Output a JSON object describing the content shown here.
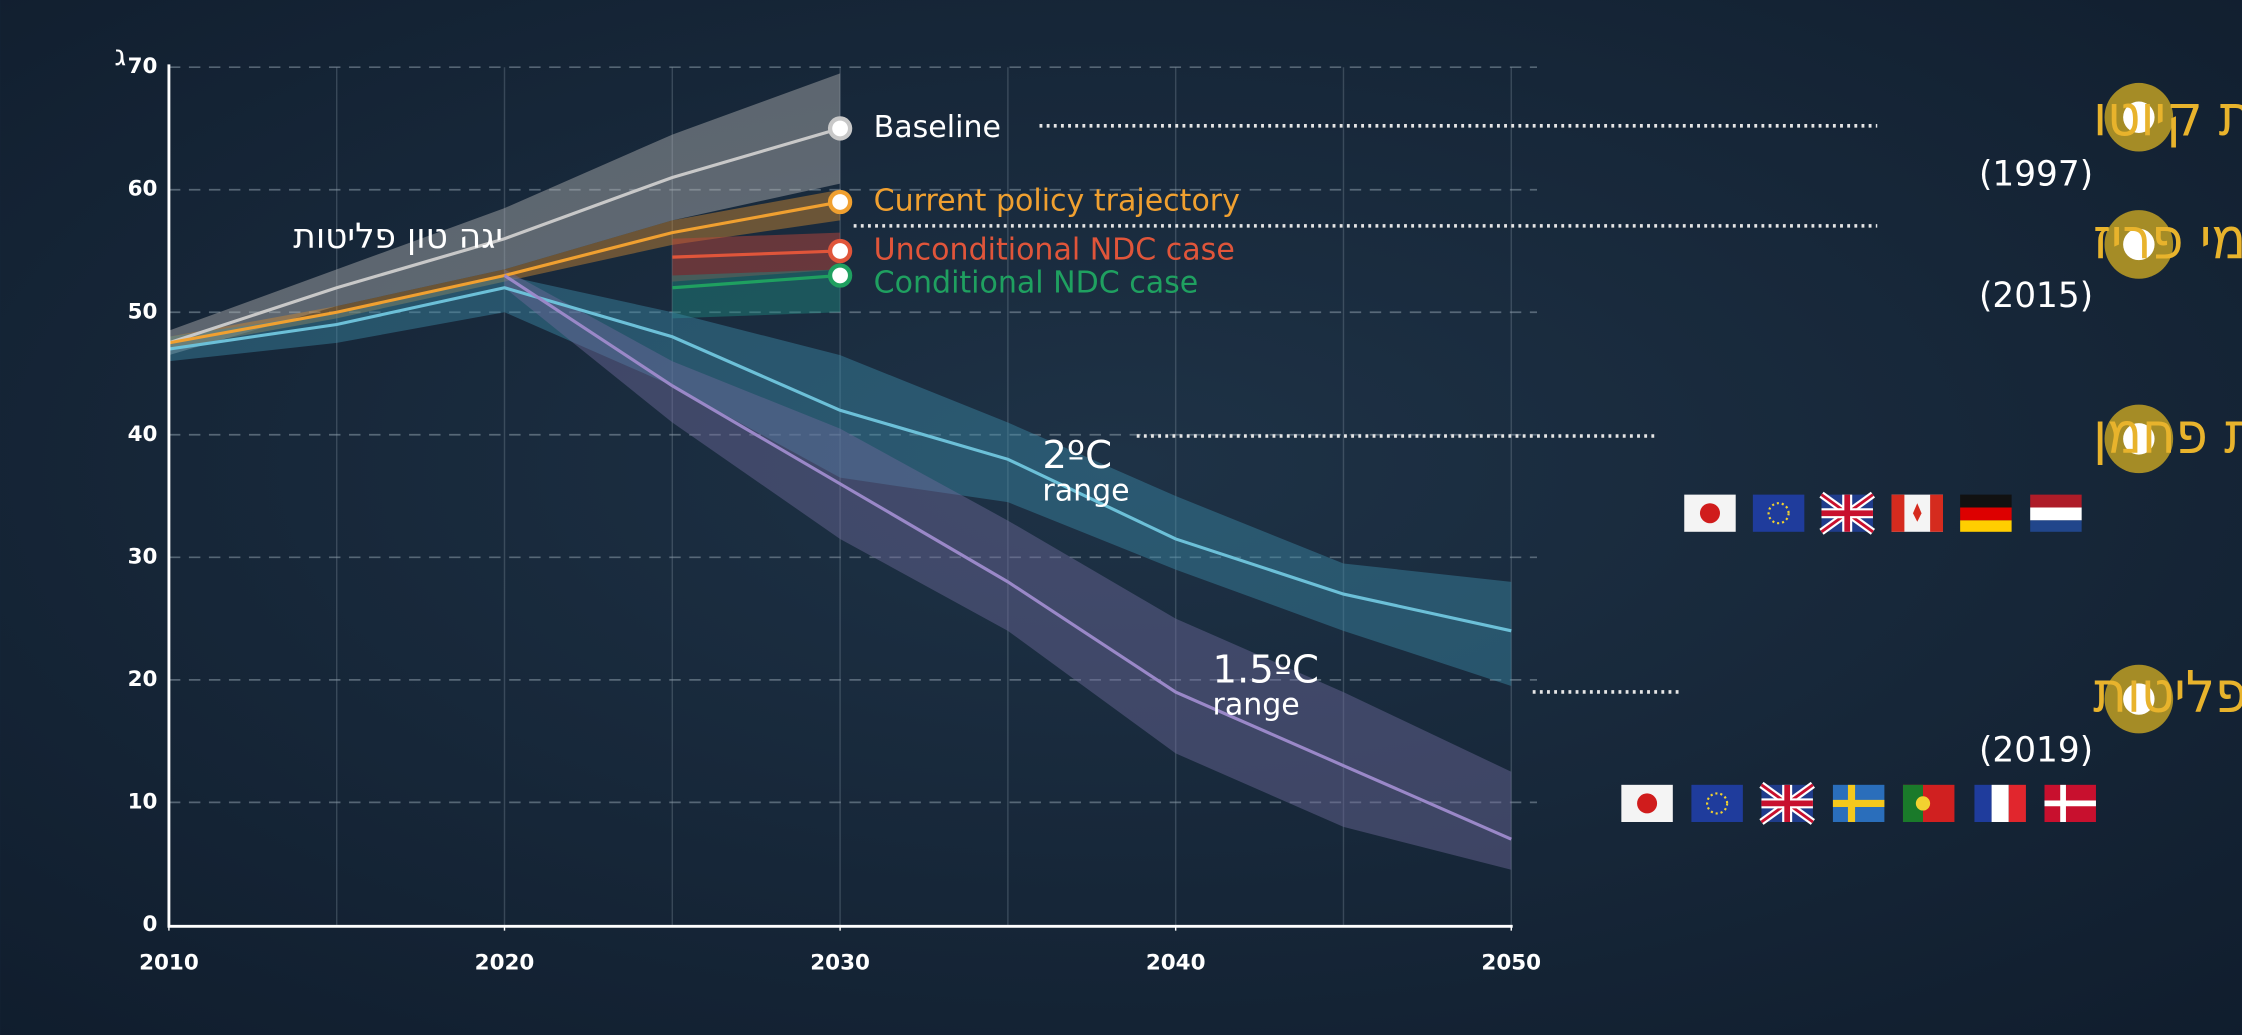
{
  "chart_data": {
    "type": "line",
    "y_unit": "ג",
    "y_label": "יגה טון פליטות",
    "x": [
      2010,
      2015,
      2020,
      2025,
      2030,
      2035,
      2040,
      2045,
      2050
    ],
    "xlim": [
      2010,
      2050
    ],
    "xticks": [
      2010,
      2020,
      2030,
      2040,
      2050
    ],
    "ylim": [
      0,
      70
    ],
    "yticks": [
      0,
      10,
      20,
      30,
      40,
      50,
      60,
      70
    ],
    "grid": true,
    "series": [
      {
        "name": "Baseline",
        "color": "#c8c8c8",
        "label_color": "#ffffff",
        "band_color": "#b4b4b4",
        "values": [
          47.5,
          52,
          56,
          61,
          65,
          null,
          null,
          null,
          null
        ],
        "lower": [
          46.5,
          50.5,
          53.5,
          57.5,
          60.5,
          null,
          null,
          null,
          null
        ],
        "upper": [
          48.5,
          53.5,
          58.5,
          64.5,
          69.5,
          null,
          null,
          null,
          null
        ]
      },
      {
        "name": "Current policy trajectory",
        "color": "#f0a030",
        "label_color": "#f0a030",
        "band_color": "#d08a30",
        "values": [
          47.5,
          50,
          53,
          56.5,
          59,
          null,
          null,
          null,
          null
        ],
        "lower": [
          47,
          49.5,
          52.5,
          55.5,
          57.5,
          null,
          null,
          null,
          null
        ],
        "upper": [
          48,
          50.5,
          53.5,
          57.5,
          60,
          null,
          null,
          null,
          null
        ]
      },
      {
        "name": "Unconditional NDC case",
        "color": "#e0553a",
        "label_color": "#e0553a",
        "band_color": "#c8463a",
        "values": [
          null,
          null,
          null,
          54.5,
          55,
          null,
          null,
          null,
          null
        ],
        "lower": [
          null,
          null,
          null,
          52.5,
          53.5,
          null,
          null,
          null,
          null
        ],
        "upper": [
          null,
          null,
          null,
          56,
          56.5,
          null,
          null,
          null,
          null
        ]
      },
      {
        "name": "Conditional NDC case",
        "color": "#1fa060",
        "label_color": "#1fa060",
        "band_color": "#1f8a80",
        "values": [
          null,
          null,
          null,
          52,
          53,
          null,
          null,
          null,
          null
        ],
        "lower": [
          null,
          null,
          null,
          49.5,
          50,
          null,
          null,
          null,
          null
        ],
        "upper": [
          null,
          null,
          null,
          53,
          53.5,
          null,
          null,
          null,
          null
        ]
      },
      {
        "name": "2ºC",
        "sublabel": "range",
        "color": "#6cc0d8",
        "label_color": "#ffffff",
        "band_color": "#3c8aa6",
        "values": [
          47,
          49,
          52,
          48,
          42,
          38,
          31.5,
          27,
          24
        ],
        "lower": [
          46,
          47.5,
          50,
          44,
          36.5,
          34.5,
          29,
          24,
          19.5
        ],
        "upper": [
          48,
          50,
          53,
          50,
          46.5,
          41,
          35,
          29.5,
          28
        ]
      },
      {
        "name": "1.5ºC",
        "sublabel": "range",
        "color": "#9a88c8",
        "label_color": "#ffffff",
        "band_color": "#6e6a9c",
        "values": [
          null,
          null,
          53,
          44,
          36,
          28,
          19,
          13,
          7
        ],
        "lower": [
          null,
          null,
          52,
          41,
          31.5,
          24,
          14,
          8,
          4.5
        ],
        "upper": [
          null,
          null,
          53.5,
          46,
          40.5,
          33,
          25,
          19,
          12.5
        ]
      }
    ]
  },
  "timeline": [
    {
      "title": "אמנת קיוטו",
      "year": "(1997)"
    },
    {
      "title": "הסכמי פריז",
      "year": "(2015)"
    },
    {
      "title": "מעבר לכלכלה דלת פחמן"
    },
    {
      "title": "כלכלה מאופסת פליטות",
      "year": "(2019)"
    }
  ]
}
